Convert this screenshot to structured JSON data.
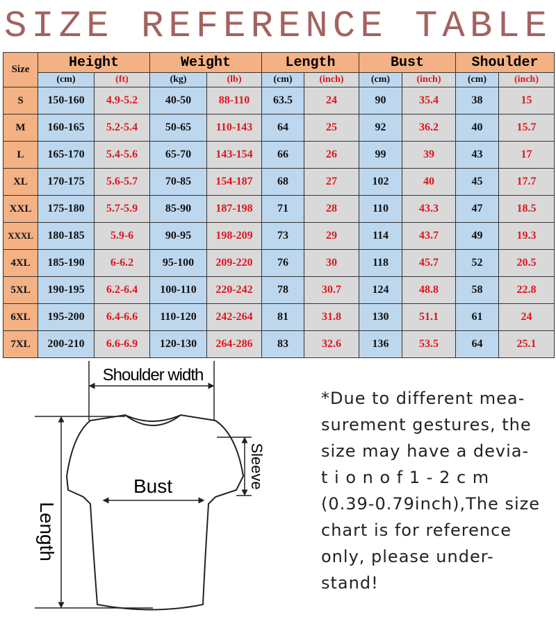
{
  "title": "SIZE REFERENCE TABLE",
  "headers": {
    "size": "Size",
    "groups": [
      "Height",
      "Weight",
      "Length",
      "Bust",
      "Shoulder"
    ],
    "units": [
      "(cm)",
      "(ft)",
      "(kg)",
      "(lb)",
      "(cm)",
      "(inch)",
      "(cm)",
      "(inch)",
      "(cm)",
      "(inch)"
    ]
  },
  "rows": [
    [
      "S",
      "150-160",
      "4.9-5.2",
      "40-50",
      "88-110",
      "63.5",
      "24",
      "90",
      "35.4",
      "38",
      "15"
    ],
    [
      "M",
      "160-165",
      "5.2-5.4",
      "50-65",
      "110-143",
      "64",
      "25",
      "92",
      "36.2",
      "40",
      "15.7"
    ],
    [
      "L",
      "165-170",
      "5.4-5.6",
      "65-70",
      "143-154",
      "66",
      "26",
      "99",
      "39",
      "43",
      "17"
    ],
    [
      "XL",
      "170-175",
      "5.6-5.7",
      "70-85",
      "154-187",
      "68",
      "27",
      "102",
      "40",
      "45",
      "17.7"
    ],
    [
      "XXL",
      "175-180",
      "5.7-5.9",
      "85-90",
      "187-198",
      "71",
      "28",
      "110",
      "43.3",
      "47",
      "18.5"
    ],
    [
      "XXXL",
      "180-185",
      "5.9-6",
      "90-95",
      "198-209",
      "73",
      "29",
      "114",
      "43.7",
      "49",
      "19.3"
    ],
    [
      "4XL",
      "185-190",
      "6-6.2",
      "95-100",
      "209-220",
      "76",
      "30",
      "118",
      "45.7",
      "52",
      "20.5"
    ],
    [
      "5XL",
      "190-195",
      "6.2-6.4",
      "100-110",
      "220-242",
      "78",
      "30.7",
      "124",
      "48.8",
      "58",
      "22.8"
    ],
    [
      "6XL",
      "195-200",
      "6.4-6.6",
      "110-120",
      "242-264",
      "81",
      "31.8",
      "130",
      "51.1",
      "61",
      "24"
    ],
    [
      "7XL",
      "200-210",
      "6.6-6.9",
      "120-130",
      "264-286",
      "83",
      "32.6",
      "136",
      "53.5",
      "64",
      "25.1"
    ]
  ],
  "diagram": {
    "shoulder": "Shoulder width",
    "bust": "Bust",
    "sleeve": "Sleeve",
    "length": "Length"
  },
  "note": [
    "*Due to different mea-",
    "surement gestures, the",
    "size may have a devia-",
    "t i o n  o f  1 - 2 c m",
    "(0.39-0.79inch),The size",
    "chart is for reference",
    "only, please under-",
    "stand!"
  ],
  "colors": {
    "title": "#a3625f",
    "header": "#f4b183",
    "metric": "#bdd7ee",
    "imperial": "#d9d9d9",
    "imperial_text": "#e0141c"
  }
}
